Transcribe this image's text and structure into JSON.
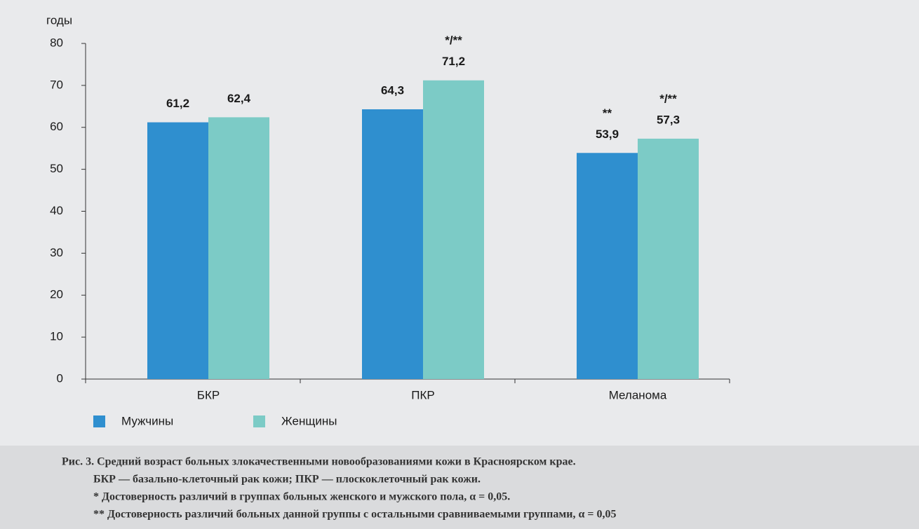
{
  "chart_data": {
    "type": "bar",
    "ylabel": "годы",
    "categories": [
      "БКР",
      "ПКР",
      "Меланома"
    ],
    "series": [
      {
        "name": "Мужчины",
        "color": "#2f8fcf",
        "values": [
          61.2,
          64.3,
          53.9
        ],
        "value_labels": [
          "61,2",
          "64,3",
          "53,9"
        ],
        "significance": [
          null,
          null,
          "**"
        ]
      },
      {
        "name": "Женщины",
        "color": "#7ccbc6",
        "values": [
          62.4,
          71.2,
          57.3
        ],
        "value_labels": [
          "62,4",
          "71,2",
          "57,3"
        ],
        "significance": [
          null,
          "*/**",
          "*/**"
        ]
      }
    ],
    "ylim": [
      0,
      80
    ],
    "yticks": [
      0,
      10,
      20,
      30,
      40,
      50,
      60,
      70,
      80
    ],
    "grid": false,
    "caption": [
      "Рис. 3.  Средний возраст больных злокачественными новообразованиями кожи в Красноярском крае.",
      "БКР — базально-клеточный рак кожи; ПКР — плоскоклеточный рак кожи.",
      "* Достоверность различий в группах больных женского и мужского пола, α = 0,05.",
      "** Достоверность различий больных данной группы с остальными сравниваемыми группами, α = 0,05"
    ]
  }
}
